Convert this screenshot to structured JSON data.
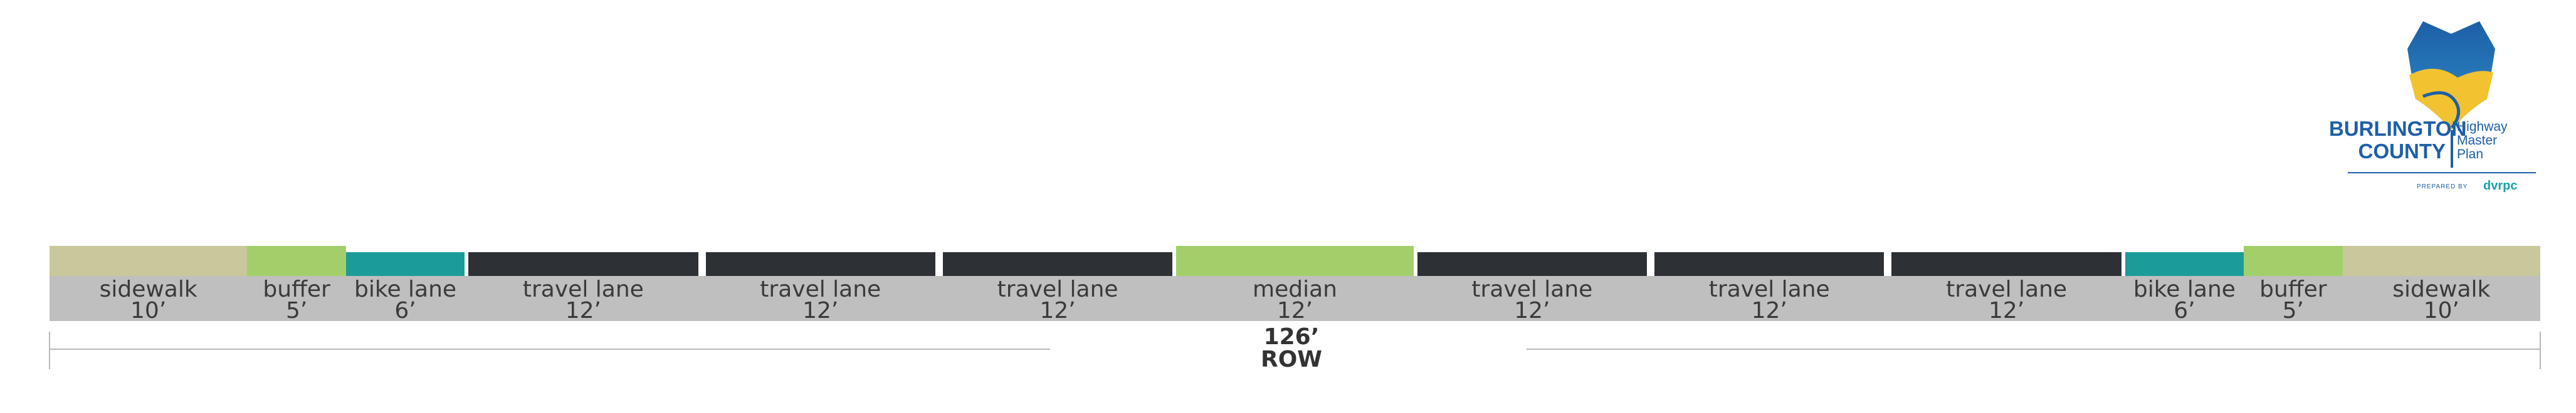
{
  "segments": [
    {
      "name": "sidewalk",
      "width_label": "10’",
      "feet": 10,
      "color": "#c9c89b"
    },
    {
      "name": "buffer",
      "width_label": "5’",
      "feet": 5,
      "color": "#a3cf6a"
    },
    {
      "name": "bike lane",
      "width_label": "6’",
      "feet": 6,
      "color": "#1b9c9b"
    },
    {
      "name": "travel lane",
      "width_label": "12’",
      "feet": 12,
      "color": "#2d3035"
    },
    {
      "name": "travel lane",
      "width_label": "12’",
      "feet": 12,
      "color": "#2d3035"
    },
    {
      "name": "travel lane",
      "width_label": "12’",
      "feet": 12,
      "color": "#2d3035"
    },
    {
      "name": "median",
      "width_label": "12’",
      "feet": 12,
      "color": "#a3cf6a"
    },
    {
      "name": "travel lane",
      "width_label": "12’",
      "feet": 12,
      "color": "#2d3035"
    },
    {
      "name": "travel lane",
      "width_label": "12’",
      "feet": 12,
      "color": "#2d3035"
    },
    {
      "name": "travel lane",
      "width_label": "12’",
      "feet": 12,
      "color": "#2d3035"
    },
    {
      "name": "bike lane",
      "width_label": "6’",
      "feet": 6,
      "color": "#1b9c9b"
    },
    {
      "name": "buffer",
      "width_label": "5’",
      "feet": 5,
      "color": "#a3cf6a"
    },
    {
      "name": "sidewalk",
      "width_label": "10’",
      "feet": 10,
      "color": "#c9c89b"
    }
  ],
  "row": {
    "width_label": "126’",
    "label": "ROW"
  },
  "logo": {
    "title_line1": "BURLINGTON",
    "title_line2": "COUNTY",
    "sub_line1": "Highway",
    "sub_line2": "Master",
    "sub_line3": "Plan",
    "prepared_by": "PREPARED BY",
    "org": "dvrpc",
    "colors": {
      "blue": "#1d5fa8",
      "teal": "#1aa3a8",
      "yellow": "#f2c230"
    }
  }
}
